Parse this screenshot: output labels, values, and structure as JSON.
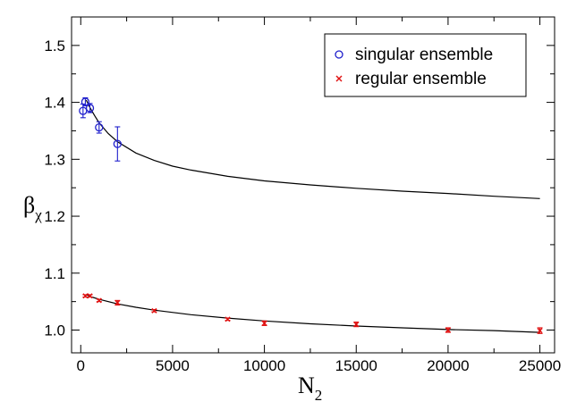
{
  "chart_data": {
    "type": "scatter",
    "title": "",
    "xlabel": "N",
    "xlabel_sub": "2",
    "ylabel": "β",
    "ylabel_sub": "χ",
    "xlim": [
      -500,
      25800
    ],
    "ylim": [
      0.96,
      1.55
    ],
    "x_ticks": [
      0,
      5000,
      10000,
      15000,
      20000,
      25000
    ],
    "y_ticks": [
      1.0,
      1.1,
      1.2,
      1.3,
      1.4,
      1.5
    ],
    "legend_position": "top-right",
    "series": [
      {
        "name": "singular ensemble",
        "marker": "circle",
        "color": "#1f1fcc",
        "points": [
          {
            "x": 125,
            "y": 1.385,
            "err": 0.012
          },
          {
            "x": 250,
            "y": 1.401,
            "err": 0.007
          },
          {
            "x": 500,
            "y": 1.39,
            "err": 0.008
          },
          {
            "x": 1000,
            "y": 1.356,
            "err": 0.01
          },
          {
            "x": 2000,
            "y": 1.327,
            "err": 0.03
          }
        ]
      },
      {
        "name": "regular ensemble",
        "marker": "x",
        "color": "#e01010",
        "points": [
          {
            "x": 250,
            "y": 1.06,
            "err": 0.002
          },
          {
            "x": 500,
            "y": 1.06,
            "err": 0.002
          },
          {
            "x": 1000,
            "y": 1.052,
            "err": 0.002
          },
          {
            "x": 2000,
            "y": 1.048,
            "err": 0.004
          },
          {
            "x": 4000,
            "y": 1.034,
            "err": 0.002
          },
          {
            "x": 8000,
            "y": 1.019,
            "err": 0.002
          },
          {
            "x": 10000,
            "y": 1.012,
            "err": 0.004
          },
          {
            "x": 15000,
            "y": 1.01,
            "err": 0.004
          },
          {
            "x": 20000,
            "y": 1.0,
            "err": 0.004
          },
          {
            "x": 25000,
            "y": 0.999,
            "err": 0.005
          }
        ]
      }
    ],
    "fit_curves": [
      {
        "name": "singular fit",
        "color": "#000000",
        "points": [
          [
            300,
            1.404
          ],
          [
            500,
            1.391
          ],
          [
            750,
            1.377
          ],
          [
            1000,
            1.364
          ],
          [
            1500,
            1.345
          ],
          [
            2000,
            1.331
          ],
          [
            3000,
            1.311
          ],
          [
            4000,
            1.298
          ],
          [
            5000,
            1.288
          ],
          [
            6000,
            1.281
          ],
          [
            8000,
            1.27
          ],
          [
            10000,
            1.262
          ],
          [
            12500,
            1.255
          ],
          [
            15000,
            1.249
          ],
          [
            17500,
            1.244
          ],
          [
            20000,
            1.24
          ],
          [
            22500,
            1.235
          ],
          [
            25000,
            1.231
          ]
        ]
      },
      {
        "name": "regular fit",
        "color": "#000000",
        "points": [
          [
            300,
            1.062
          ],
          [
            600,
            1.058
          ],
          [
            1000,
            1.054
          ],
          [
            2000,
            1.046
          ],
          [
            3000,
            1.04
          ],
          [
            4000,
            1.035
          ],
          [
            6000,
            1.027
          ],
          [
            8000,
            1.021
          ],
          [
            10000,
            1.016
          ],
          [
            12500,
            1.011
          ],
          [
            15000,
            1.007
          ],
          [
            17500,
            1.004
          ],
          [
            20000,
            1.001
          ],
          [
            22500,
            0.999
          ],
          [
            25000,
            0.996
          ]
        ]
      }
    ]
  }
}
